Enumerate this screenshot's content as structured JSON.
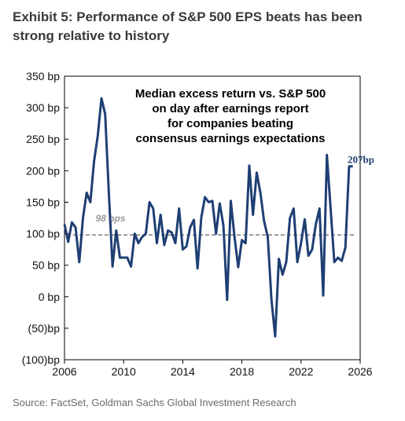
{
  "exhibit": {
    "title": "Exhibit 5: Performance of S&P 500 EPS beats has been strong relative to history",
    "source": "Source: FactSet, Goldman Sachs Global Investment Research"
  },
  "chart_data": {
    "type": "line",
    "title": "",
    "xlabel": "",
    "ylabel": "",
    "xlim": [
      2006,
      2026
    ],
    "ylim": [
      -100,
      350
    ],
    "x_ticks": [
      2006,
      2010,
      2014,
      2018,
      2022,
      2026
    ],
    "x_tick_labels": [
      "2006",
      "2010",
      "2014",
      "2018",
      "2022",
      "2026"
    ],
    "y_ticks": [
      350,
      300,
      250,
      200,
      150,
      100,
      50,
      0,
      -50,
      -100
    ],
    "y_tick_labels": [
      "350 bp",
      "300 bp",
      "250 bp",
      "200 bp",
      "150 bp",
      "100 bp",
      "50 bp",
      "0 bp",
      "(50)bp",
      "(100)bp"
    ],
    "annotation": [
      "Median excess return vs. S&P 500",
      "on day after earnings report",
      "for companies beating",
      "consensus earnings expectations"
    ],
    "reference_line": {
      "value": 98,
      "label": "98 bps",
      "color": "#9a9a9a",
      "style": "dashed"
    },
    "end_label": "207bp",
    "series": [
      {
        "color": "#1f3f73",
        "x": [
          2006.0,
          2006.25,
          2006.5,
          2006.75,
          2007.0,
          2007.25,
          2007.5,
          2007.75,
          2008.0,
          2008.25,
          2008.5,
          2008.75,
          2009.0,
          2009.25,
          2009.5,
          2009.75,
          2010.0,
          2010.25,
          2010.5,
          2010.75,
          2011.0,
          2011.25,
          2011.5,
          2011.75,
          2012.0,
          2012.25,
          2012.5,
          2012.75,
          2013.0,
          2013.25,
          2013.5,
          2013.75,
          2014.0,
          2014.25,
          2014.5,
          2014.75,
          2015.0,
          2015.25,
          2015.5,
          2015.75,
          2016.0,
          2016.25,
          2016.5,
          2016.75,
          2017.0,
          2017.25,
          2017.5,
          2017.75,
          2018.0,
          2018.25,
          2018.5,
          2018.75,
          2019.0,
          2019.25,
          2019.5,
          2019.75,
          2020.0,
          2020.25,
          2020.5,
          2020.75,
          2021.0,
          2021.25,
          2021.5,
          2021.75,
          2022.0,
          2022.25,
          2022.5,
          2022.75,
          2023.0,
          2023.25,
          2023.5,
          2023.75,
          2024.0,
          2024.25,
          2024.5,
          2024.75,
          2025.0,
          2025.25,
          2025.5
        ],
        "values": [
          115,
          87,
          118,
          110,
          55,
          125,
          165,
          150,
          215,
          255,
          315,
          290,
          165,
          48,
          105,
          62,
          62,
          62,
          48,
          100,
          85,
          95,
          100,
          150,
          140,
          85,
          130,
          82,
          105,
          102,
          85,
          140,
          75,
          80,
          110,
          122,
          45,
          125,
          158,
          150,
          152,
          100,
          148,
          113,
          -5,
          152,
          95,
          47,
          90,
          85,
          208,
          130,
          197,
          165,
          120,
          95,
          -5,
          -63,
          60,
          35,
          55,
          125,
          140,
          55,
          85,
          123,
          65,
          75,
          115,
          140,
          2,
          225,
          140,
          55,
          62,
          57,
          78,
          207,
          207
        ]
      }
    ]
  }
}
